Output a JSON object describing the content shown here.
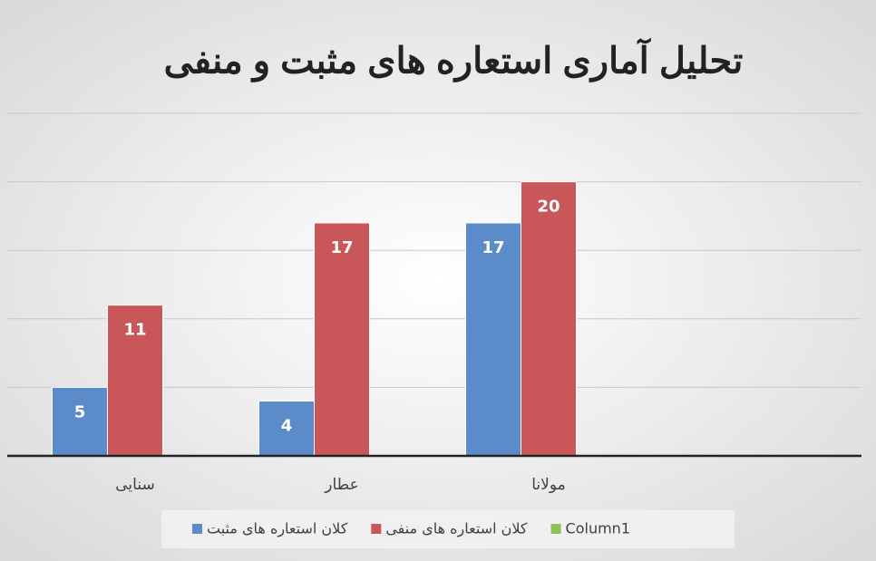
{
  "chart_data": {
    "type": "bar",
    "title": "تحلیل آماری استعاره های مثبت و منفی",
    "categories": [
      "سنایی",
      "عطار",
      "مولانا",
      null
    ],
    "series": [
      {
        "name": "کلان استعاره های مثبت",
        "color": "#5b8bc9",
        "values": [
          5,
          4,
          17,
          null
        ]
      },
      {
        "name": "کلان استعاره های منفی",
        "color": "#c9575a",
        "values": [
          11,
          17,
          20,
          null
        ]
      },
      {
        "name": "Column1",
        "color": "#8fc158",
        "values": [
          null,
          null,
          null,
          null
        ]
      }
    ],
    "ylim": [
      0,
      25
    ],
    "yticks": [
      0,
      5,
      10,
      15,
      20,
      25
    ],
    "grid": true,
    "legend": "bottom"
  }
}
